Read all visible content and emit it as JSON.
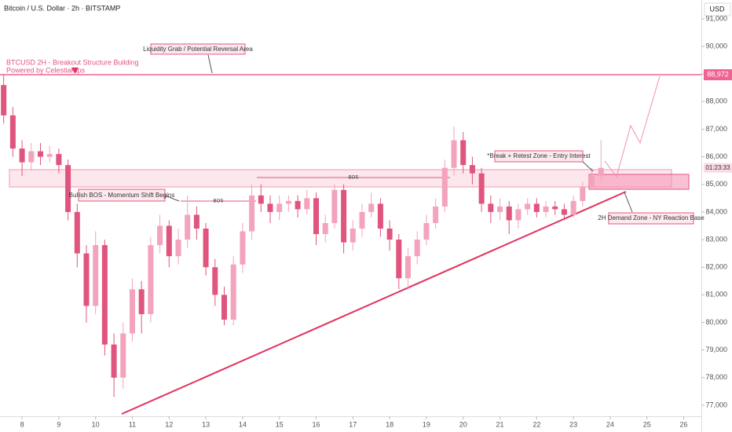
{
  "chart_data": {
    "type": "candlestick",
    "title": "Bitcoin / U.S. Dollar · 2h · BITSTAMP",
    "currency": "USD",
    "up_color": "#f4a3bc",
    "down_color": "#e0557e",
    "x": [
      7.5,
      7.75,
      8,
      8.25,
      8.5,
      8.75,
      9,
      9.25,
      9.5,
      9.75,
      10,
      10.25,
      10.5,
      10.75,
      11,
      11.25,
      11.5,
      11.75,
      12,
      12.25,
      12.5,
      12.75,
      13,
      13.25,
      13.5,
      13.75,
      14,
      14.25,
      14.5,
      14.75,
      15,
      15.25,
      15.5,
      15.75,
      16,
      16.25,
      16.5,
      16.75,
      17,
      17.25,
      17.5,
      17.75,
      18,
      18.25,
      18.5,
      18.75,
      19,
      19.25,
      19.5,
      19.75,
      20,
      20.25,
      20.5,
      20.75,
      21,
      21.25,
      21.5,
      21.75,
      22,
      22.25,
      22.5,
      22.75,
      23,
      23.25,
      23.5,
      23.75
    ],
    "open": [
      88600,
      87500,
      86300,
      85800,
      86200,
      86000,
      86100,
      85700,
      84000,
      82500,
      80600,
      82800,
      79200,
      78000,
      79600,
      81200,
      80300,
      82800,
      83500,
      82400,
      83000,
      83900,
      83400,
      82000,
      81000,
      80100,
      82100,
      83300,
      84600,
      84300,
      84000,
      84300,
      84400,
      84100,
      84500,
      83200,
      83600,
      84800,
      82900,
      83400,
      84000,
      84300,
      83400,
      83000,
      81600,
      82400,
      83000,
      83600,
      84200,
      85600,
      86600,
      85700,
      85400,
      84300,
      84000,
      84200,
      83700,
      84100,
      84300,
      84000,
      84200,
      84100,
      83900,
      84400,
      84900,
      85300
    ],
    "high": [
      89000,
      87800,
      86600,
      86500,
      86500,
      86400,
      86300,
      85900,
      84300,
      82800,
      83300,
      83000,
      79600,
      80000,
      81600,
      81500,
      83100,
      83900,
      83700,
      83400,
      84600,
      84200,
      83600,
      82300,
      81300,
      82400,
      83600,
      85000,
      85000,
      84600,
      84600,
      84600,
      84600,
      84800,
      84700,
      83900,
      85000,
      85000,
      83700,
      84300,
      84700,
      84500,
      83700,
      83200,
      82700,
      83300,
      83900,
      84500,
      85900,
      87100,
      86900,
      86000,
      85600,
      84600,
      84500,
      84400,
      84300,
      84500,
      84500,
      84400,
      84400,
      84300,
      84600,
      85100,
      85600,
      86600
    ],
    "low": [
      87200,
      86000,
      85300,
      85500,
      85700,
      85800,
      85400,
      83700,
      82000,
      80000,
      80300,
      78800,
      77300,
      77600,
      79300,
      79600,
      80000,
      82500,
      82000,
      82100,
      82700,
      83000,
      81700,
      80600,
      79900,
      79900,
      81800,
      83000,
      84000,
      83600,
      83700,
      84000,
      83800,
      83900,
      82800,
      82900,
      83400,
      82500,
      82600,
      83100,
      83800,
      83100,
      82600,
      81200,
      81200,
      82100,
      82800,
      83400,
      84000,
      85300,
      85400,
      85000,
      84000,
      83600,
      83700,
      83200,
      83400,
      83900,
      83800,
      83800,
      83900,
      83700,
      83800,
      84200,
      84800,
      85100
    ],
    "close": [
      87500,
      86300,
      85800,
      86200,
      86000,
      86100,
      85700,
      84000,
      82500,
      80600,
      82800,
      79200,
      78000,
      79600,
      81200,
      80300,
      82800,
      83500,
      82400,
      83000,
      83900,
      83400,
      82000,
      81000,
      80100,
      82100,
      83300,
      84600,
      84300,
      84000,
      84300,
      84400,
      84100,
      84500,
      83200,
      83600,
      84800,
      82900,
      83400,
      84000,
      84300,
      83400,
      83000,
      81600,
      82400,
      83000,
      83600,
      84200,
      85600,
      86600,
      85700,
      85400,
      84300,
      84000,
      84200,
      83700,
      84100,
      84300,
      84000,
      84200,
      84100,
      83900,
      84400,
      84900,
      85300,
      85600
    ],
    "xlim": [
      7.4,
      26.48
    ],
    "xticks": [
      8,
      9,
      10,
      11,
      12,
      13,
      14,
      15,
      16,
      17,
      18,
      19,
      20,
      21,
      22,
      23,
      24,
      25,
      26
    ],
    "ylim": [
      76600,
      91680
    ],
    "yticks": [
      {
        "value": 77000,
        "label": "77,000"
      },
      {
        "value": 78000,
        "label": "78,000"
      },
      {
        "value": 79000,
        "label": "79,000"
      },
      {
        "value": 80000,
        "label": "80,000"
      },
      {
        "value": 81000,
        "label": "81,000"
      },
      {
        "value": 82000,
        "label": "82,000"
      },
      {
        "value": 83000,
        "label": "83,000"
      },
      {
        "value": 84000,
        "label": "84,000"
      },
      {
        "value": 85000,
        "label": "85,000"
      },
      {
        "value": 86000,
        "label": "86,000"
      },
      {
        "value": 87000,
        "label": "87,000"
      },
      {
        "value": 88000,
        "label": "88,000"
      },
      {
        "value": 89000,
        "label": "89,000"
      },
      {
        "value": 90000,
        "label": "90,000"
      },
      {
        "value": 91000,
        "label": "91,000"
      }
    ],
    "level": {
      "value": 88972,
      "label": "88,972"
    },
    "countdown": "01:23:33",
    "annotations": {
      "liquidity": "Liquidity Grab / Potential Reversal Area",
      "headline": "BTCUSD 2H - Breakout Structure Building",
      "credit": "Powered by CelestiaPips",
      "bullish_bos": "Bullish BOS - Momentum Shift Begins",
      "bos_1": "BOS",
      "bos_2": "BOS",
      "retest": "*Break + Retest Zone - Entry Interest",
      "demand": "2H Demand Zone - NY Reaction Base"
    }
  }
}
